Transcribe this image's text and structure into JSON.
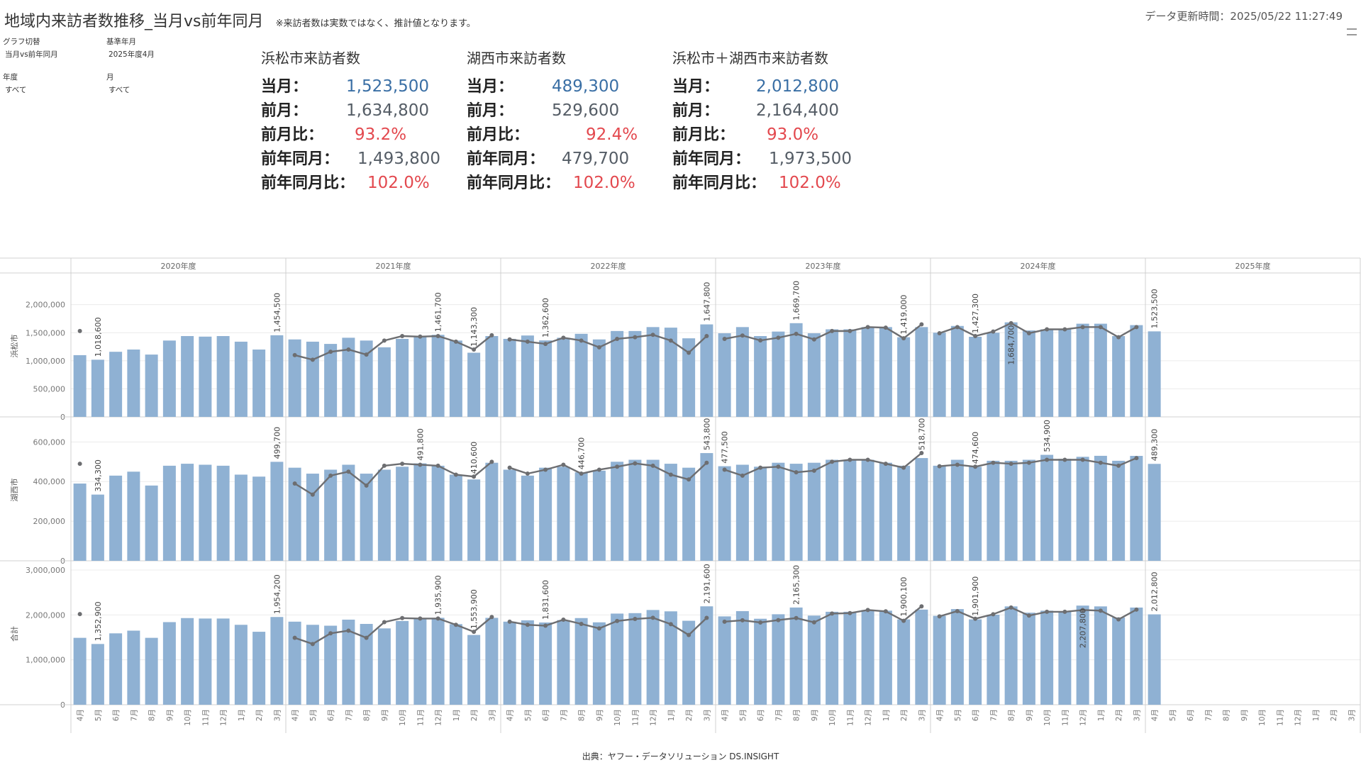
{
  "header": {
    "title": "地域内来訪者数推移_当月vs前年同月",
    "note": "※来訪者数は実数ではなく、推計値となります。",
    "updated_label": "データ更新時間：",
    "updated_value": "2025/05/22 11:27:49"
  },
  "filters": {
    "graph_switch": {
      "label": "グラフ切替",
      "value": "当月vs前年同月"
    },
    "base_month": {
      "label": "基準年月",
      "value": "2025年度4月"
    },
    "fiscal_year": {
      "label": "年度",
      "value": "すべて"
    },
    "month": {
      "label": "月",
      "value": "すべて"
    }
  },
  "kpis": [
    {
      "title": "浜松市来訪者数",
      "rows": [
        {
          "label": "当月：",
          "value": "1,523,500",
          "color": "#3a6fa5"
        },
        {
          "label": "前月：",
          "value": "1,634,800",
          "color": "#555d66"
        },
        {
          "label": "前月比：",
          "value": "93.2%",
          "color": "#e3484e"
        },
        {
          "label": "前年同月：",
          "value": "1,493,800",
          "color": "#555d66"
        },
        {
          "label": "前年同月比：",
          "value": "102.0%",
          "color": "#e3484e"
        }
      ]
    },
    {
      "title": "湖西市来訪者数",
      "rows": [
        {
          "label": "当月：",
          "value": "489,300",
          "color": "#3a6fa5"
        },
        {
          "label": "前月：",
          "value": "529,600",
          "color": "#555d66"
        },
        {
          "label": "前月比：",
          "value": "92.4%",
          "color": "#e3484e"
        },
        {
          "label": "前年同月：",
          "value": "479,700",
          "color": "#555d66"
        },
        {
          "label": "前年同月比：",
          "value": "102.0%",
          "color": "#e3484e"
        }
      ]
    },
    {
      "title": "浜松市＋湖西市来訪者数",
      "rows": [
        {
          "label": "当月：",
          "value": "2,012,800",
          "color": "#3a6fa5"
        },
        {
          "label": "前月：",
          "value": "2,164,400",
          "color": "#555d66"
        },
        {
          "label": "前月比：",
          "value": "93.0%",
          "color": "#e3484e"
        },
        {
          "label": "前年同月：",
          "value": "1,973,500",
          "color": "#555d66"
        },
        {
          "label": "前年同月比：",
          "value": "102.0%",
          "color": "#e3484e"
        }
      ]
    }
  ],
  "source": "出典：ヤフー・データソリューション DS.INSIGHT",
  "chart_data": {
    "type": "bar",
    "description_free": true,
    "years": [
      "2020年度",
      "2021年度",
      "2022年度",
      "2023年度",
      "2024年度",
      "2025年度"
    ],
    "months": [
      "4月",
      "5月",
      "6月",
      "7月",
      "8月",
      "9月",
      "10月",
      "11月",
      "12月",
      "1月",
      "2月",
      "3月"
    ],
    "bar_color": "#8fb1d3",
    "line_color": "#6d6e71",
    "panels": [
      {
        "name": "浜松市",
        "ylim": [
          0,
          2400000
        ],
        "yticks": [
          0,
          500000,
          1000000,
          1500000,
          2000000
        ],
        "ytick_labels": [
          "0",
          "500,000",
          "1,000,000",
          "1,500,000",
          "2,000,000"
        ],
        "bars": [
          1100000,
          1018600,
          1160000,
          1200000,
          1110000,
          1360000,
          1440000,
          1430000,
          1440000,
          1340000,
          1200000,
          1454500,
          1380000,
          1340000,
          1300000,
          1410000,
          1360000,
          1240000,
          1390000,
          1420000,
          1461700,
          1360000,
          1143300,
          1440000,
          1390000,
          1450000,
          1362600,
          1410000,
          1480000,
          1380000,
          1530000,
          1530000,
          1600000,
          1590000,
          1400000,
          1647800,
          1490000,
          1600000,
          1440000,
          1520000,
          1669700,
          1490000,
          1560000,
          1560000,
          1600000,
          1600000,
          1419000,
          1600000,
          1500000,
          1620000,
          1427300,
          1500000,
          1684700,
          1540000,
          1560000,
          1560000,
          1660000,
          1660000,
          1440000,
          1634800,
          1523500,
          null,
          null,
          null,
          null,
          null,
          null,
          null,
          null,
          null,
          null,
          null
        ],
        "line": [
          1530000,
          null,
          null,
          null,
          null,
          null,
          null,
          null,
          null,
          null,
          null,
          null,
          1100000,
          1018600,
          1160000,
          1200000,
          1110000,
          1360000,
          1440000,
          1430000,
          1440000,
          1340000,
          1200000,
          1454500,
          1380000,
          1340000,
          1300000,
          1410000,
          1360000,
          1240000,
          1390000,
          1420000,
          1461700,
          1360000,
          1143300,
          1440000,
          1390000,
          1450000,
          1362600,
          1410000,
          1480000,
          1380000,
          1530000,
          1530000,
          1600000,
          1590000,
          1400000,
          1647800,
          1490000,
          1600000,
          1440000,
          1520000,
          1669700,
          1490000,
          1560000,
          1560000,
          1600000,
          1600000,
          1419000,
          1600000,
          null,
          null,
          null,
          null,
          null,
          null,
          null,
          null,
          null,
          null,
          null,
          null
        ],
        "labels": [
          {
            "i": 1,
            "text": "1,018,600"
          },
          {
            "i": 11,
            "text": "1,454,500"
          },
          {
            "i": 20,
            "text": "1,461,700"
          },
          {
            "i": 22,
            "text": "1,143,300"
          },
          {
            "i": 26,
            "text": "1,362,600"
          },
          {
            "i": 35,
            "text": "1,647,800"
          },
          {
            "i": 40,
            "text": "1,669,700"
          },
          {
            "i": 46,
            "text": "1,419,000"
          },
          {
            "i": 50,
            "text": "1,427,300"
          },
          {
            "i": 52,
            "text": "1,684,700",
            "inside": true
          },
          {
            "i": 60,
            "text": "1,523,500"
          }
        ]
      },
      {
        "name": "湖西市",
        "ylim": [
          0,
          680000
        ],
        "yticks": [
          0,
          200000,
          400000,
          600000
        ],
        "ytick_labels": [
          "0",
          "200,000",
          "400,000",
          "600,000"
        ],
        "bars": [
          390000,
          334300,
          430000,
          450000,
          380000,
          480000,
          490000,
          485000,
          480000,
          435000,
          425000,
          499700,
          470000,
          440000,
          460000,
          485000,
          440000,
          460000,
          475000,
          491800,
          480000,
          435000,
          410600,
          495000,
          460000,
          430000,
          470000,
          475000,
          446700,
          455000,
          500000,
          510000,
          510000,
          490000,
          470000,
          543800,
          477500,
          485000,
          475000,
          495000,
          490000,
          495000,
          510000,
          510000,
          510000,
          495000,
          480000,
          518700,
          480000,
          510000,
          474600,
          505000,
          505000,
          510000,
          534900,
          515000,
          525000,
          530000,
          505000,
          529600,
          489300,
          null,
          null,
          null,
          null,
          null,
          null,
          null,
          null,
          null,
          null,
          null
        ],
        "line": [
          490000,
          null,
          null,
          null,
          null,
          null,
          null,
          null,
          null,
          null,
          null,
          null,
          390000,
          334300,
          430000,
          450000,
          380000,
          480000,
          490000,
          485000,
          480000,
          435000,
          425000,
          499700,
          470000,
          440000,
          460000,
          485000,
          440000,
          460000,
          475000,
          491800,
          480000,
          435000,
          410600,
          495000,
          460000,
          430000,
          470000,
          475000,
          446700,
          455000,
          500000,
          510000,
          510000,
          490000,
          470000,
          543800,
          477500,
          485000,
          475000,
          495000,
          490000,
          495000,
          510000,
          510000,
          510000,
          495000,
          480000,
          518700,
          null,
          null,
          null,
          null,
          null,
          null,
          null,
          null,
          null,
          null,
          null,
          null
        ],
        "labels": [
          {
            "i": 1,
            "text": "334,300"
          },
          {
            "i": 11,
            "text": "499,700"
          },
          {
            "i": 19,
            "text": "491,800"
          },
          {
            "i": 22,
            "text": "410,600"
          },
          {
            "i": 28,
            "text": "446,700"
          },
          {
            "i": 35,
            "text": "543,800"
          },
          {
            "i": 36,
            "text": "477,500"
          },
          {
            "i": 47,
            "text": "518,700"
          },
          {
            "i": 50,
            "text": "474,600"
          },
          {
            "i": 54,
            "text": "534,900"
          },
          {
            "i": 60,
            "text": "489,300"
          }
        ]
      },
      {
        "name": "合計",
        "ylim": [
          0,
          3000000
        ],
        "yticks": [
          0,
          1000000,
          2000000,
          3000000
        ],
        "ytick_labels": [
          "0",
          "1,000,000",
          "2,000,000",
          "3,000,000"
        ],
        "bars": [
          1490000,
          1352900,
          1590000,
          1650000,
          1490000,
          1840000,
          1930000,
          1920000,
          1920000,
          1780000,
          1625000,
          1954200,
          1850000,
          1780000,
          1760000,
          1895000,
          1800000,
          1700000,
          1865000,
          1910000,
          1935900,
          1795000,
          1553900,
          1935000,
          1850000,
          1880000,
          1831600,
          1885000,
          1930000,
          1835000,
          2030000,
          2040000,
          2110000,
          2080000,
          1870000,
          2191600,
          1967500,
          2085000,
          1915000,
          2015000,
          2165300,
          1985000,
          2070000,
          2070000,
          2110000,
          2095000,
          1900100,
          2118700,
          1980000,
          2130000,
          1901900,
          2005000,
          2189700,
          2050000,
          2094900,
          2075000,
          2207800,
          2190000,
          1945000,
          2164400,
          2012800,
          null,
          null,
          null,
          null,
          null,
          null,
          null,
          null,
          null,
          null,
          null
        ],
        "line": [
          2020000,
          null,
          null,
          null,
          null,
          null,
          null,
          null,
          null,
          null,
          null,
          null,
          1490000,
          1352900,
          1590000,
          1650000,
          1490000,
          1840000,
          1930000,
          1920000,
          1920000,
          1780000,
          1625000,
          1954200,
          1850000,
          1780000,
          1760000,
          1895000,
          1800000,
          1700000,
          1865000,
          1910000,
          1935900,
          1795000,
          1553900,
          1935000,
          1850000,
          1880000,
          1831600,
          1885000,
          1930000,
          1835000,
          2030000,
          2040000,
          2110000,
          2080000,
          1870000,
          2191600,
          1967500,
          2085000,
          1915000,
          2015000,
          2165300,
          1985000,
          2070000,
          2070000,
          2110000,
          2095000,
          1900100,
          2118700,
          null,
          null,
          null,
          null,
          null,
          null,
          null,
          null,
          null,
          null,
          null,
          null
        ],
        "labels": [
          {
            "i": 1,
            "text": "1,352,900"
          },
          {
            "i": 11,
            "text": "1,954,200"
          },
          {
            "i": 20,
            "text": "1,935,900"
          },
          {
            "i": 22,
            "text": "1,553,900"
          },
          {
            "i": 26,
            "text": "1,831,600"
          },
          {
            "i": 35,
            "text": "2,191,600"
          },
          {
            "i": 40,
            "text": "2,165,300"
          },
          {
            "i": 46,
            "text": "1,900,100"
          },
          {
            "i": 50,
            "text": "1,901,900"
          },
          {
            "i": 56,
            "text": "2,207,800",
            "inside": true
          },
          {
            "i": 60,
            "text": "2,012,800"
          }
        ]
      }
    ]
  }
}
